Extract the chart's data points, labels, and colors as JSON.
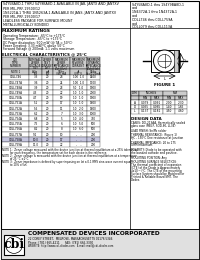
{
  "title_left_lines": [
    "S4Y5BA8D-1 THRU S4Y9BA8D-1 AVAILABLE IN JAB, JANTX AND JANTXV",
    "PER MIL-PRF-19500/12",
    "1N5221A-1 THRU 1N5263A-1 AVAILABLE IN JANS, JANTX AND JANTXV",
    "PER MIL-PRF-19500/17",
    "LEADLESS PACKAGE FOR SURFACE MOUNT",
    "METALLURGICALLY BONDED"
  ],
  "title_right_lines": [
    "S4Y5BA8D-1 thru 1S4Y9BA8D-1",
    "and",
    "1N4372A-1 thru 1N4372A-1",
    "and",
    "CDLL746 thru CDLL759A",
    "and",
    "CDLL079 thru CDLL113A"
  ],
  "max_ratings_title": "MAXIMUM RATINGS",
  "max_ratings_lines": [
    "Operating Temperature: -65°C to +175°C",
    "Storage Temperature: -65°C to +175°C",
    "DC Power dissipation: 500 mW (@ TA = 50°C)",
    "Power Derating: 3.33 mW/°C above 50°C",
    "Forward Voltage @ 200mA: 1.1 volts maximum"
  ],
  "elec_char_title": "ELECTRICAL CHARACTERISTICS @ 25°C",
  "table_col_headers": [
    "CDI\nTYPE\nNUMBER",
    "NOMINAL\nZENER\nVOLTAGE\n(Vz)",
    "ZENER\nTEST\nCURRENT\n(Izt)",
    "MAXIMUM\nZENER\nIMPEDANCE\n(Zzt@Izt)",
    "MAXIMUM\nREVERSE\nCURRENT",
    "MAXIMUM\nDYNAMIC\nIMPEDANCE\n(Zzk@Izk)"
  ],
  "table_col_units": [
    "NOTE 1",
    "Volts\nTaz",
    "mA\nTaz",
    "Ohms\n(Izt) mA",
    "uA\n(Vr)  V",
    "Ohms\nIzk=0.25mA"
  ],
  "table_rows": [
    [
      "CDLL746",
      "3.3",
      "20",
      "28",
      "100  1.0",
      "1400"
    ],
    [
      "CDLL747A",
      "3.6",
      "20",
      "24",
      "100  1.0",
      "1700"
    ],
    [
      "CDLL748A",
      "3.9",
      "20",
      "23",
      "50   1.0",
      "1900"
    ],
    [
      "CDLL749A",
      "4.3",
      "20",
      "22",
      "10   1.0",
      "2000"
    ],
    [
      "CDLL750A",
      "4.7",
      "20",
      "19",
      "10   1.0",
      "1900"
    ],
    [
      "CDLL751A",
      "5.1",
      "20",
      "17",
      "10   1.0",
      "1600"
    ],
    [
      "CDLL752A",
      "5.6",
      "20",
      "11",
      "10   2.0",
      "1600"
    ],
    [
      "CDLL753A",
      "6.2",
      "20",
      "7",
      "10   3.0",
      "1000"
    ],
    [
      "CDLL754A",
      "6.8",
      "20",
      "5",
      "10   4.0",
      "750"
    ],
    [
      "CDLL755A",
      "7.5",
      "20",
      "6",
      "10   5.0",
      "500"
    ],
    [
      "CDLL756A",
      "8.2",
      "20",
      "8",
      "10   6.0",
      "500"
    ],
    [
      "CDLL757A",
      "9.1",
      "20",
      "10",
      "-    -",
      "200"
    ],
    [
      "CDLL758A",
      "10.0",
      "20",
      "17",
      "-    -",
      "200"
    ],
    [
      "CDLL759A",
      "11.0",
      "20",
      "22",
      "-    -",
      "200"
    ]
  ],
  "highlighted_row_idx": 12,
  "notes": [
    "NOTE 1:  Zener voltage measured with the device junction at thermal equilibrium at a 25% tolerance",
    "         for each frequency, the temperature set for each device is the reference.",
    "NOTE 2:  Zener voltage is measured with the device junction at thermal equilibrium at a temperature",
    "         of 25 °C ±1°C.",
    "NOTE 3:  Zener impedance is defined by superimposing on Izt a 0.1 RMS sine-wave current equal",
    "         to 10% of Izt."
  ],
  "design_data_title": "DESIGN DATA",
  "design_data_blocks": [
    [
      "CASES: DO-213AA, Hermetically sealed",
      "glass case (MELF, SOD-80, LL34)"
    ],
    [
      "LEAD FINISH: Sn/Pb solder"
    ],
    [
      "THERMAL RESISTANCE: (Figure 1)",
      "θJC - 150°C One resistance at Junction"
    ],
    [
      "THERMAL IMPEDANCE: 20 to 175",
      "OHM maximum"
    ],
    [
      "POLARITY: Diode to be operated with",
      "the banded cathode end positive."
    ],
    [
      "MOUNTING POSITION: Any"
    ],
    [
      "MOUNTING SURFACE SELECTION:",
      "The thermal coefficient of expansion",
      "(CTE) of the Diode is Approximately",
      "4x10⁻⁶ /°C. The CTE of the mounting",
      "Surface System should be Matched for",
      "Printed & Reliable Board SMT. The",
      "Diodes."
    ]
  ],
  "figure_title": "FIGURE 1",
  "figure_dim_headers": [
    "DIM",
    "INCHES",
    "",
    "MM",
    ""
  ],
  "figure_dim_subheaders": [
    "",
    "MIN",
    "MAX",
    "MIN",
    "MAX"
  ],
  "figure_dim_rows": [
    [
      "A",
      "0.079",
      "0.091",
      "2.00",
      "2.30"
    ],
    [
      "D",
      "0.055",
      "0.065",
      "1.40",
      "1.65"
    ],
    [
      "L",
      "0.137",
      "0.181",
      "3.50",
      "4.60"
    ]
  ],
  "company_name": "COMPENSATED DEVICES INCORPORATED",
  "company_address": "22 COREY STREET,  MELROSE, MASSACHUSETTS 02176-5346",
  "company_phone": "Phone: (781) 665-4211",
  "company_fax": "FAX: (781) 665-3330",
  "company_website": "WEBSITE: http://www.cdi-diodes.com",
  "company_email": "E-mail: mail@cdi-diodes.com",
  "white": "#ffffff",
  "black": "#000000",
  "light_gray": "#cccccc",
  "med_gray": "#999999",
  "highlight_bg": "#c8c8e0",
  "bottom_bg": "#e0e0e0"
}
